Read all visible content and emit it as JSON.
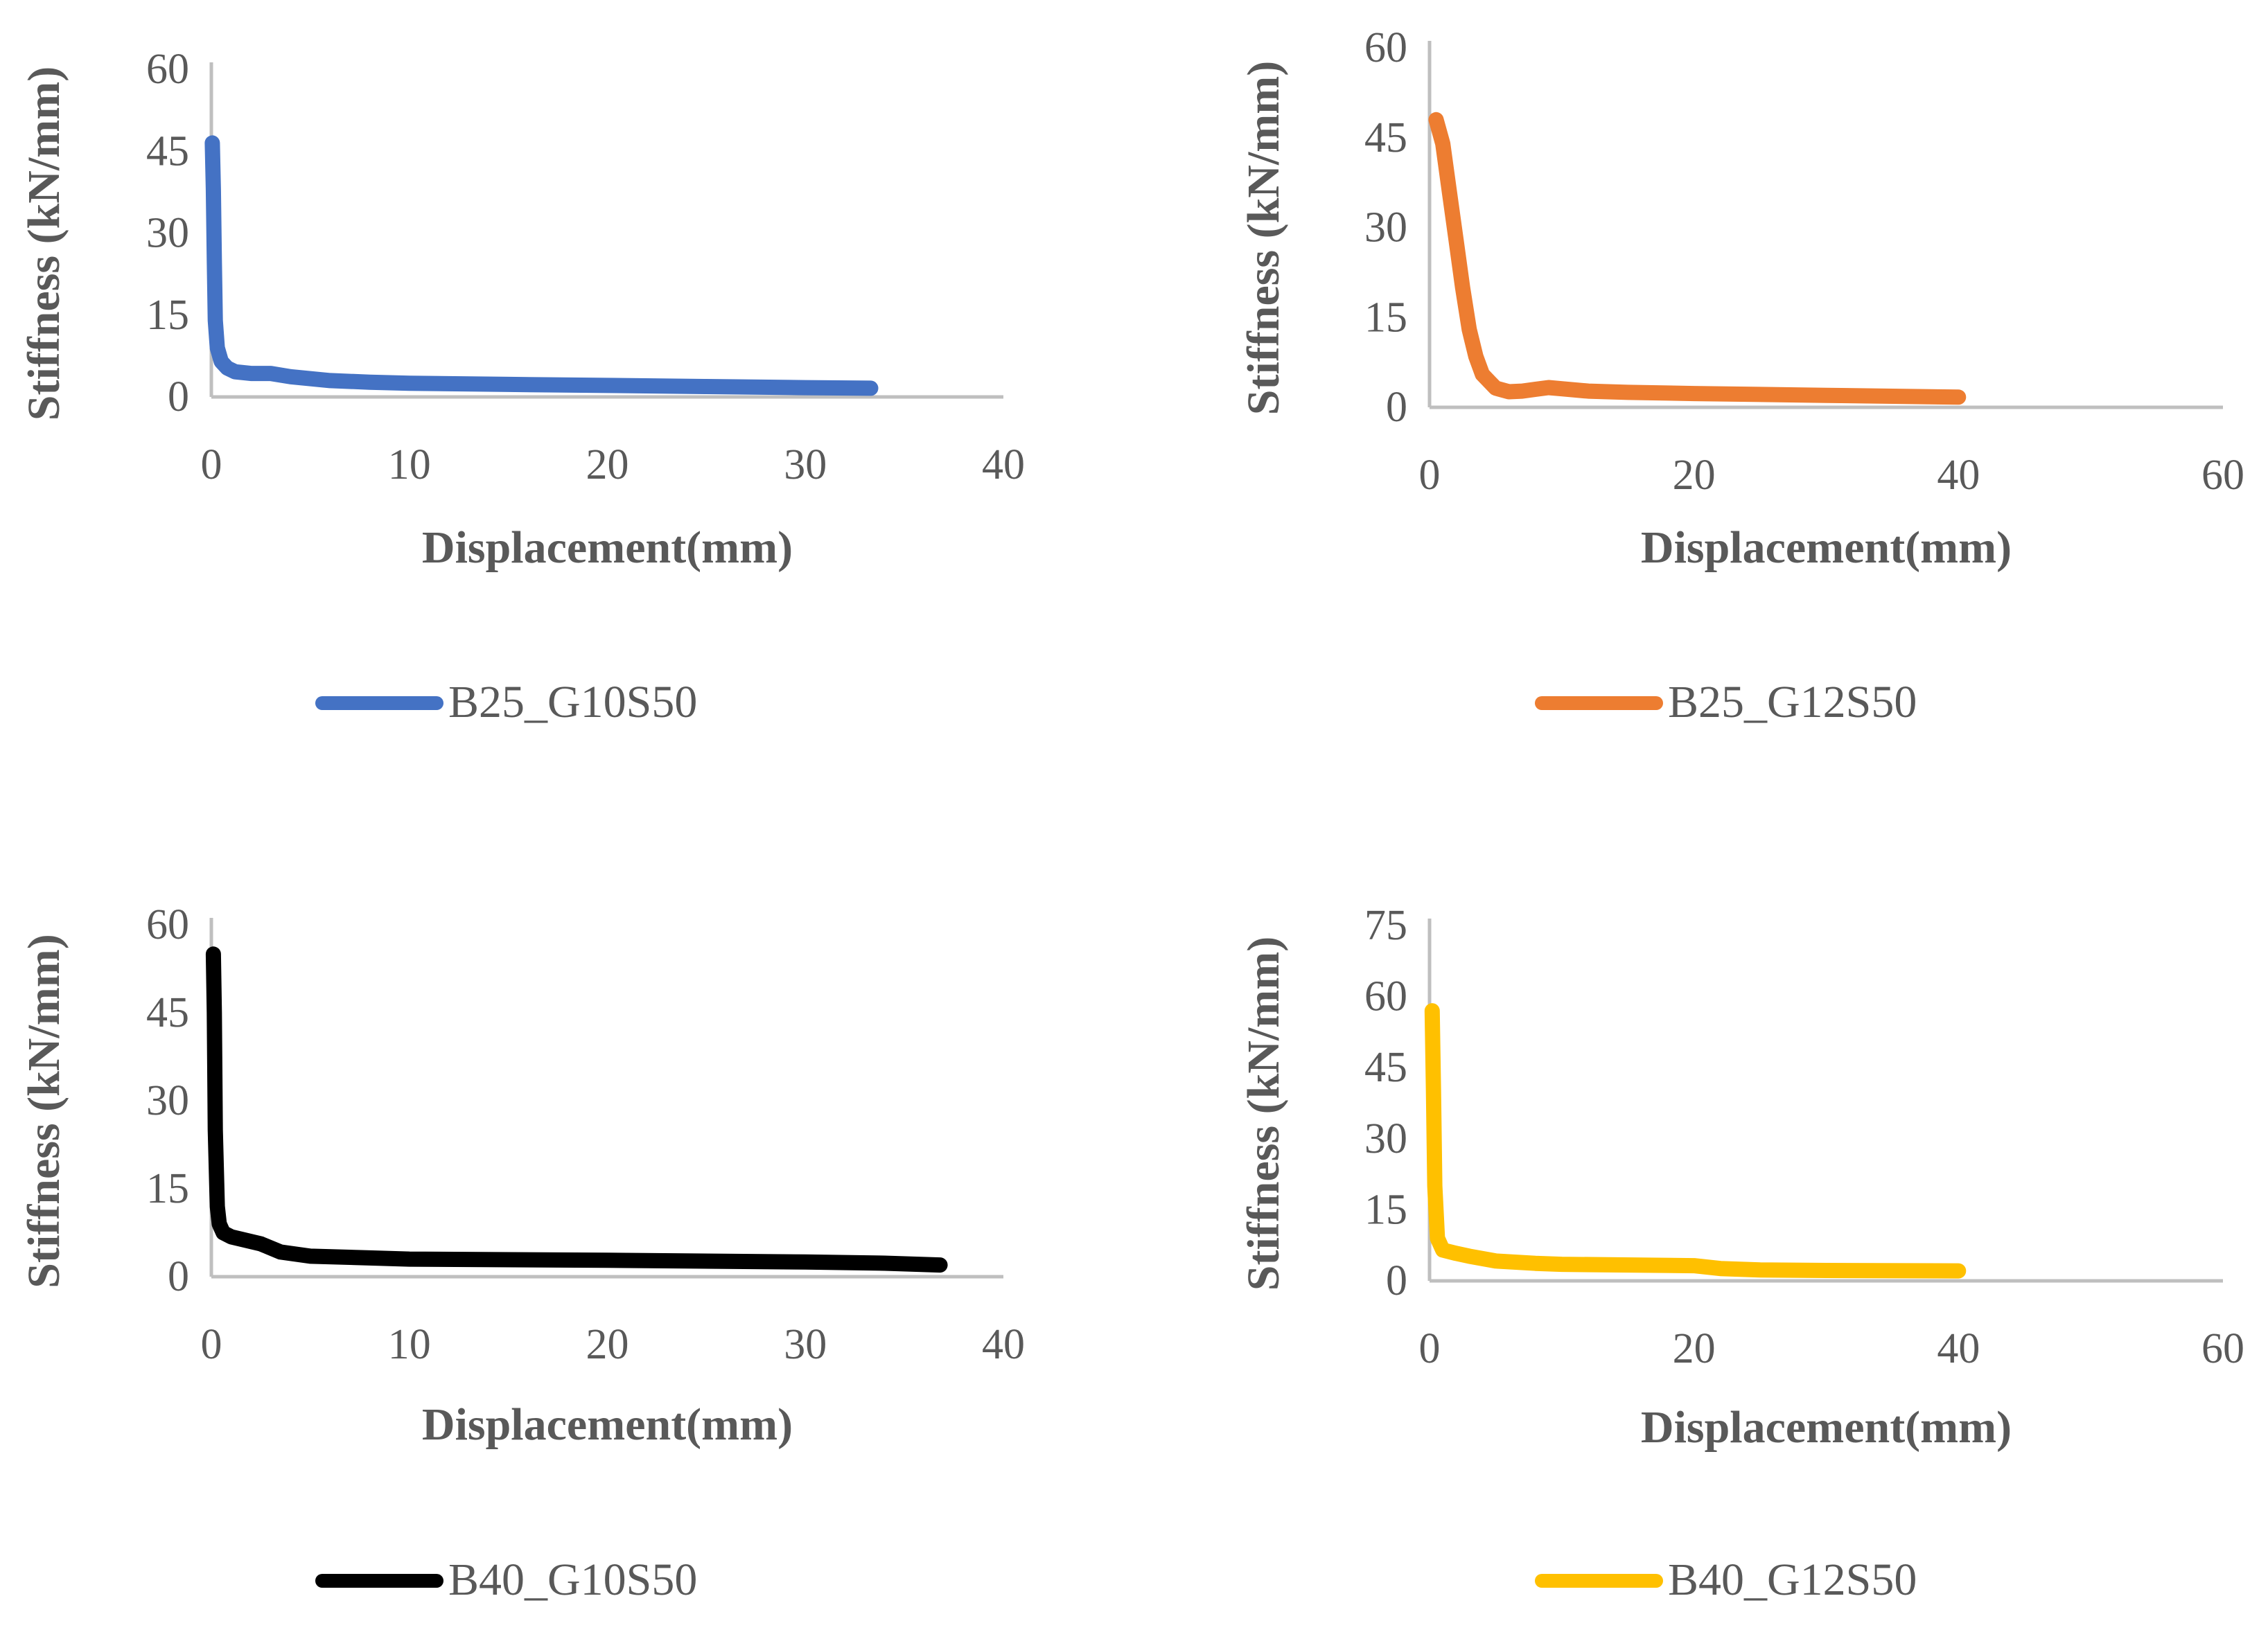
{
  "chart_data": [
    {
      "type": "line",
      "xlabel": "Displacement(mm)",
      "ylabel": "Stiffness (kN/mm)",
      "xlim": [
        0,
        40
      ],
      "ylim": [
        0,
        60
      ],
      "xticks": [
        0,
        10,
        20,
        30,
        40
      ],
      "yticks": [
        0,
        15,
        30,
        45,
        60
      ],
      "grid": false,
      "legend_position": "bottom",
      "color": "#4472C4",
      "series": [
        {
          "name": "B25_G10S50",
          "x": [
            0.05,
            0.1,
            0.15,
            0.2,
            0.3,
            0.5,
            0.8,
            1.2,
            2,
            3,
            4,
            6,
            8,
            10,
            15,
            20,
            25,
            30,
            33.3
          ],
          "y": [
            46.5,
            38,
            25,
            14,
            9,
            6.5,
            5.3,
            4.6,
            4.3,
            4.3,
            3.7,
            3.0,
            2.7,
            2.5,
            2.3,
            2.1,
            1.9,
            1.7,
            1.6
          ]
        }
      ]
    },
    {
      "type": "line",
      "xlabel": "Displacement(mm)",
      "ylabel": "Stiffness (kN/mm)",
      "xlim": [
        0,
        60
      ],
      "ylim": [
        0,
        60
      ],
      "xticks": [
        0,
        20,
        40,
        60
      ],
      "yticks": [
        0,
        15,
        30,
        45,
        60
      ],
      "grid": false,
      "legend_position": "bottom",
      "color": "#ED7D31",
      "series": [
        {
          "name": "B25_G12S50",
          "x": [
            0.5,
            1,
            1.5,
            2,
            2.5,
            3,
            3.5,
            4,
            5,
            6,
            7,
            8,
            9,
            10,
            12,
            15,
            20,
            30,
            40
          ],
          "y": [
            48,
            44,
            36,
            28,
            20,
            13,
            8.5,
            5.5,
            3.2,
            2.6,
            2.7,
            3.0,
            3.3,
            3.1,
            2.7,
            2.5,
            2.3,
            2.0,
            1.7
          ]
        }
      ]
    },
    {
      "type": "line",
      "xlabel": "Displacement(mm)",
      "ylabel": "Stiffness (kN/mm)",
      "xlim": [
        0,
        40
      ],
      "ylim": [
        0,
        60
      ],
      "xticks": [
        0,
        10,
        20,
        30,
        40
      ],
      "yticks": [
        0,
        15,
        30,
        45,
        60
      ],
      "grid": false,
      "legend_position": "bottom",
      "color": "#000000",
      "series": [
        {
          "name": "B40_G10S50",
          "x": [
            0.1,
            0.15,
            0.2,
            0.3,
            0.4,
            0.6,
            1,
            2,
            2.5,
            3.5,
            5,
            8,
            10,
            20,
            30,
            34,
            36.8
          ],
          "y": [
            55,
            45,
            25,
            12,
            9,
            7.5,
            6.8,
            6.0,
            5.6,
            4.2,
            3.5,
            3.2,
            3.0,
            2.8,
            2.5,
            2.3,
            2.0
          ]
        }
      ]
    },
    {
      "type": "line",
      "xlabel": "Displacement(mm)",
      "ylabel": "Stiffness (kN/mm)",
      "xlim": [
        0,
        60
      ],
      "ylim": [
        0,
        75
      ],
      "xticks": [
        0,
        20,
        40,
        60
      ],
      "yticks": [
        0,
        15,
        30,
        45,
        60,
        75
      ],
      "grid": false,
      "legend_position": "bottom",
      "color": "#FFC000",
      "series": [
        {
          "name": "B40_G12S50",
          "x": [
            0.2,
            0.3,
            0.4,
            0.6,
            1,
            2,
            3,
            5,
            8,
            10,
            20,
            22,
            25,
            30,
            40
          ],
          "y": [
            57,
            40,
            20,
            9,
            6.5,
            5.8,
            5.2,
            4.2,
            3.7,
            3.5,
            3.2,
            2.6,
            2.3,
            2.2,
            2.1
          ]
        }
      ]
    }
  ]
}
